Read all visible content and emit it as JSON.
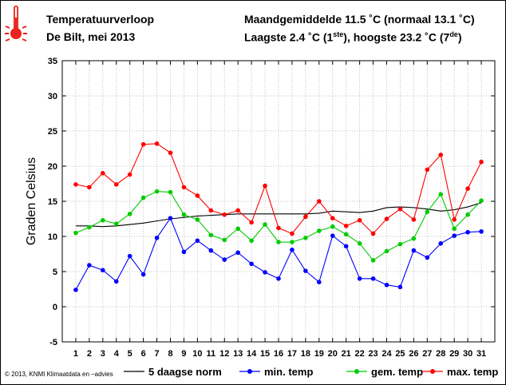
{
  "header": {
    "title": "Temperatuurverloop",
    "subtitle": "De Bilt, mei 2013",
    "monthly_mean": "Maandgemiddelde 11.5 ˚C (normaal 13.1 ˚C)",
    "extremes_prefix": "Laagste 2.4 ˚C (1",
    "extremes_sup1": "ste",
    "extremes_mid": "), hoogste 23.2 ˚C (7",
    "extremes_sup2": "de",
    "extremes_suffix": ")"
  },
  "credit": "© 2013, KNMI Klimaatdata en –advies",
  "icon": "thermometer-icon",
  "chart_data": {
    "type": "line",
    "ylabel": "Graden Celsius",
    "xlabel": "",
    "ylim": [
      -5,
      35
    ],
    "yticks": [
      "-5",
      "0",
      "5",
      "10",
      "15",
      "20",
      "25",
      "30",
      "35"
    ],
    "categories": [
      "1",
      "2",
      "3",
      "4",
      "5",
      "6",
      "7",
      "8",
      "9",
      "10",
      "11",
      "12",
      "13",
      "14",
      "15",
      "16",
      "17",
      "18",
      "19",
      "20",
      "21",
      "22",
      "23",
      "24",
      "25",
      "26",
      "27",
      "28",
      "29",
      "30",
      "31"
    ],
    "legend_position": "bottom",
    "series": [
      {
        "name": "5 daagse norm",
        "color": "#000000",
        "markers": false,
        "values": [
          11.5,
          11.5,
          11.4,
          11.5,
          11.7,
          11.9,
          12.2,
          12.5,
          12.7,
          12.9,
          13.0,
          13.1,
          13.2,
          13.2,
          13.2,
          13.2,
          13.2,
          13.2,
          13.3,
          13.6,
          13.5,
          13.4,
          13.6,
          14.1,
          14.2,
          14.1,
          13.9,
          13.6,
          13.8,
          14.2,
          14.8
        ]
      },
      {
        "name": "min. temp",
        "color": "#0000ff",
        "markers": true,
        "values": [
          2.4,
          5.9,
          5.2,
          3.6,
          7.2,
          4.6,
          9.8,
          12.6,
          7.8,
          9.4,
          8.0,
          6.7,
          7.7,
          6.1,
          4.9,
          4.0,
          8.1,
          5.1,
          3.5,
          10.1,
          8.6,
          4.0,
          4.0,
          3.1,
          2.8,
          8.0,
          7.0,
          9.0,
          10.1,
          10.6,
          10.7
        ]
      },
      {
        "name": "gem. temp",
        "color": "#00cc00",
        "markers": true,
        "values": [
          10.5,
          11.3,
          12.3,
          11.8,
          13.2,
          15.5,
          16.4,
          16.3,
          13.1,
          12.4,
          10.2,
          9.5,
          11.1,
          9.4,
          11.7,
          9.2,
          9.2,
          9.8,
          10.8,
          11.4,
          10.3,
          9.0,
          6.6,
          7.9,
          8.9,
          9.7,
          13.5,
          16.0,
          11.1,
          13.1,
          15.1
        ]
      },
      {
        "name": "max. temp",
        "color": "#ff0000",
        "markers": true,
        "values": [
          17.4,
          17.0,
          19.0,
          17.4,
          18.8,
          23.1,
          23.2,
          21.9,
          17.0,
          15.8,
          13.7,
          13.1,
          13.7,
          12.0,
          17.2,
          11.2,
          10.4,
          12.8,
          15.0,
          12.6,
          11.5,
          12.3,
          10.4,
          12.5,
          13.9,
          12.4,
          19.5,
          21.6,
          12.4,
          16.8,
          20.6
        ]
      }
    ]
  }
}
